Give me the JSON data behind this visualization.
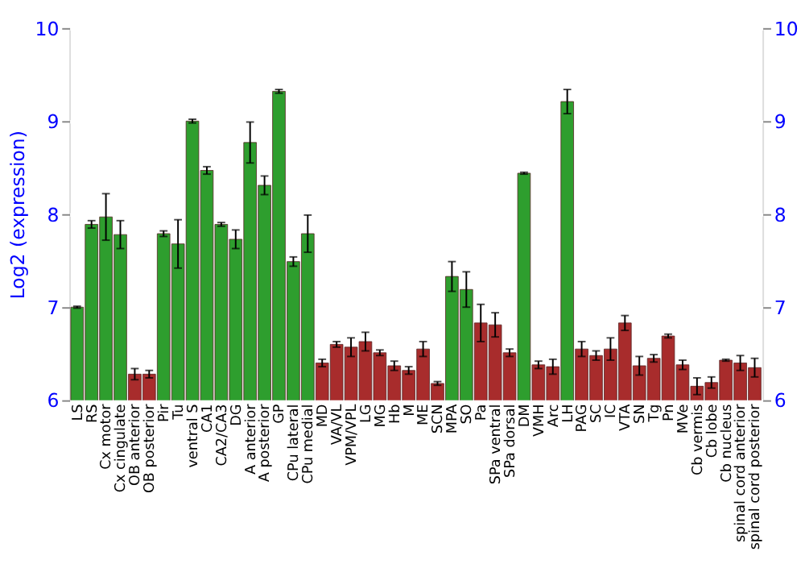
{
  "chart_data": {
    "type": "bar",
    "ylabel": "Log2 (expression)",
    "categories": [
      "LS",
      "RS",
      "Cx motor",
      "Cx cingulate",
      "OB anterior",
      "OB posterior",
      "Pir",
      "Tu",
      "ventral S",
      "CA1",
      "CA2/CA3",
      "DG",
      "A anterior",
      "A posterior",
      "GP",
      "CPu lateral",
      "CPu medial",
      "MD",
      "VA/VL",
      "VPM/VPL",
      "LG",
      "MG",
      "Hb",
      "M",
      "ME",
      "SCN",
      "MPA",
      "SO",
      "Pa",
      "SPa ventral",
      "SPa dorsal",
      "DM",
      "VMH",
      "Arc",
      "LH",
      "PAG",
      "SC",
      "IC",
      "VTA",
      "SN",
      "Tg",
      "Pn",
      "MVe",
      "Cb vermis",
      "Cb lobe",
      "Cb nucleus",
      "spinal cord anterior",
      "spinal cord posterior"
    ],
    "values": [
      7.0,
      7.89,
      7.97,
      7.78,
      6.28,
      6.28,
      7.79,
      7.68,
      9.0,
      8.47,
      7.89,
      7.73,
      8.77,
      8.31,
      9.32,
      7.49,
      7.79,
      6.4,
      6.6,
      6.57,
      6.63,
      6.51,
      6.37,
      6.32,
      6.55,
      6.18,
      7.33,
      7.19,
      6.83,
      6.81,
      6.51,
      8.44,
      6.38,
      6.36,
      9.21,
      6.55,
      6.48,
      6.55,
      6.83,
      6.37,
      6.45,
      6.69,
      6.38,
      6.15,
      6.19,
      6.43,
      6.4,
      6.35
    ],
    "errors": [
      0.01,
      0.04,
      0.25,
      0.15,
      0.06,
      0.04,
      0.03,
      0.26,
      0.02,
      0.04,
      0.02,
      0.1,
      0.22,
      0.1,
      0.02,
      0.05,
      0.2,
      0.04,
      0.03,
      0.1,
      0.1,
      0.03,
      0.05,
      0.04,
      0.08,
      0.02,
      0.16,
      0.19,
      0.2,
      0.13,
      0.04,
      0.01,
      0.04,
      0.08,
      0.13,
      0.08,
      0.05,
      0.12,
      0.08,
      0.1,
      0.04,
      0.02,
      0.05,
      0.09,
      0.06,
      0.01,
      0.08,
      0.1
    ],
    "colors": [
      "#2e9e2e",
      "#2e9e2e",
      "#2e9e2e",
      "#2e9e2e",
      "#a82c2c",
      "#a82c2c",
      "#2e9e2e",
      "#2e9e2e",
      "#2e9e2e",
      "#2e9e2e",
      "#2e9e2e",
      "#2e9e2e",
      "#2e9e2e",
      "#2e9e2e",
      "#2e9e2e",
      "#2e9e2e",
      "#2e9e2e",
      "#a82c2c",
      "#a82c2c",
      "#a82c2c",
      "#a82c2c",
      "#a82c2c",
      "#a82c2c",
      "#a82c2c",
      "#a82c2c",
      "#a82c2c",
      "#2e9e2e",
      "#2e9e2e",
      "#a82c2c",
      "#a82c2c",
      "#a82c2c",
      "#2e9e2e",
      "#a82c2c",
      "#a82c2c",
      "#2e9e2e",
      "#a82c2c",
      "#a82c2c",
      "#a82c2c",
      "#a82c2c",
      "#a82c2c",
      "#a82c2c",
      "#a82c2c",
      "#a82c2c",
      "#a82c2c",
      "#a82c2c",
      "#a82c2c",
      "#a82c2c",
      "#a82c2c"
    ],
    "ylim": [
      6,
      10
    ],
    "yticks": [
      6,
      7,
      8,
      9,
      10
    ],
    "y2lim": [
      6,
      10
    ],
    "y2ticks": [
      6,
      7,
      8,
      9,
      10
    ],
    "grid": "y"
  }
}
